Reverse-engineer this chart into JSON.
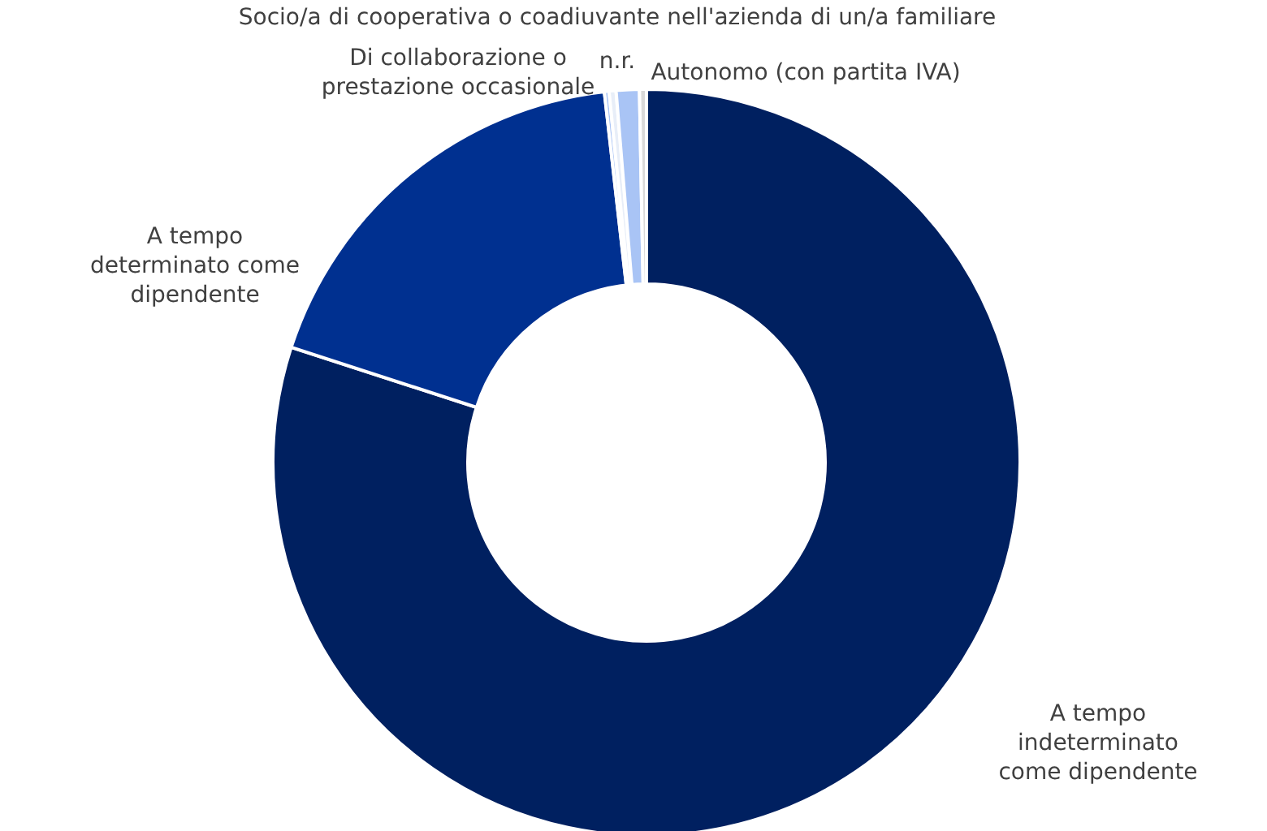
{
  "chart_data": {
    "type": "donut",
    "categories": [
      "A tempo indeterminato come dipendente",
      "A tempo determinato come dipendente",
      "Di collaborazione o prestazione occasionale",
      "Socio/a di cooperativa o coadiuvante nell'azienda di un/a familiare",
      "n.r.",
      "Autonomo (con partita IVA)"
    ],
    "values": [
      80,
      18.2,
      0.2,
      0.3,
      1.0,
      0.3
    ],
    "colors": [
      "#002060",
      "#003090",
      "#a9c4f5",
      "#e8eef8",
      "#a9c4f5",
      "#d9d9d9"
    ]
  }
}
